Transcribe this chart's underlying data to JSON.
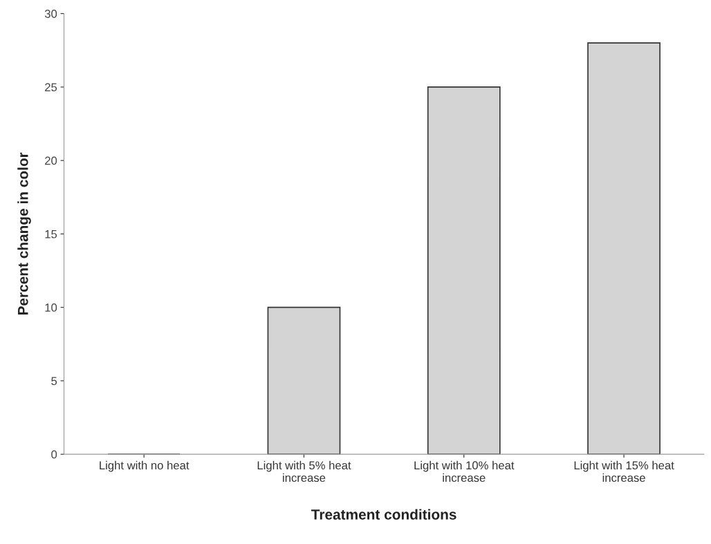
{
  "chart_data": {
    "type": "bar",
    "xlabel": "Treatment conditions",
    "ylabel": "Percent change in color",
    "categories": [
      "Light with no heat",
      "Light with 5% heat\nincrease",
      "Light with 10% heat\nincrease",
      "Light with 15% heat\nincrease"
    ],
    "values": [
      0,
      10,
      25,
      28
    ],
    "colors": [
      "#333333",
      "#d4d4d4",
      "#d4d4d4",
      "#d4d4d4"
    ],
    "ylim": [
      0,
      30
    ],
    "yticks": [
      0,
      5,
      10,
      15,
      20,
      25,
      30
    ],
    "grid": false,
    "legend": false
  }
}
